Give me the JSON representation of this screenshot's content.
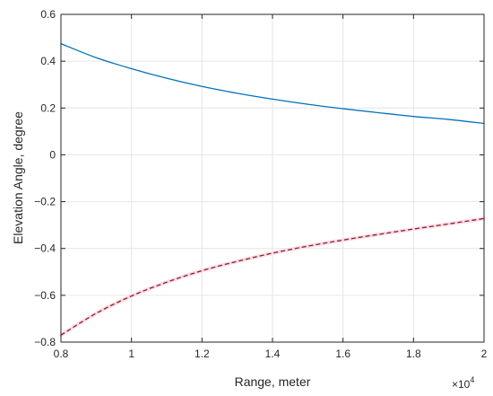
{
  "chart_data": {
    "type": "line",
    "xlabel": "Range, meter",
    "ylabel": "Elevation Angle, degree",
    "x_exponent_label": {
      "base": "×10",
      "power": "4"
    },
    "xlim": [
      8000,
      20000
    ],
    "ylim": [
      -0.8,
      0.6
    ],
    "x_ticks": [
      8000,
      10000,
      12000,
      14000,
      16000,
      18000,
      20000
    ],
    "x_tick_labels": [
      "0.8",
      "1",
      "1.2",
      "1.4",
      "1.6",
      "1.8",
      "2"
    ],
    "y_ticks": [
      -0.8,
      -0.6,
      -0.4,
      -0.2,
      0,
      0.2,
      0.4,
      0.6
    ],
    "y_tick_labels": [
      "−0.8",
      "−0.6",
      "−0.4",
      "−0.2",
      "0",
      "0.2",
      "0.4",
      "0.6"
    ],
    "grid": true,
    "series": [
      {
        "style": "solid",
        "color": "#0072BD",
        "x": [
          8000,
          9000,
          10000,
          11000,
          12000,
          13000,
          14000,
          15000,
          16000,
          17000,
          18000,
          19000,
          20000
        ],
        "y": [
          0.475,
          0.415,
          0.368,
          0.327,
          0.292,
          0.263,
          0.238,
          0.216,
          0.197,
          0.18,
          0.164,
          0.151,
          0.134
        ]
      },
      {
        "style": "solid",
        "color": "#FFD6F5",
        "x": [
          8000,
          9000,
          10000,
          11000,
          12000,
          13000,
          14000,
          15000,
          16000,
          17000,
          18000,
          19000,
          20000
        ],
        "y": [
          -0.77,
          -0.677,
          -0.603,
          -0.544,
          -0.495,
          -0.455,
          -0.42,
          -0.39,
          -0.364,
          -0.34,
          -0.317,
          -0.295,
          -0.272
        ]
      },
      {
        "style": "dashed",
        "color": "#7E2F00",
        "x": [
          8000,
          9000,
          10000,
          11000,
          12000,
          13000,
          14000,
          15000,
          16000,
          17000,
          18000,
          19000,
          20000
        ],
        "y": [
          -0.77,
          -0.677,
          -0.603,
          -0.544,
          -0.495,
          -0.455,
          -0.42,
          -0.39,
          -0.364,
          -0.34,
          -0.317,
          -0.295,
          -0.272
        ]
      }
    ]
  }
}
